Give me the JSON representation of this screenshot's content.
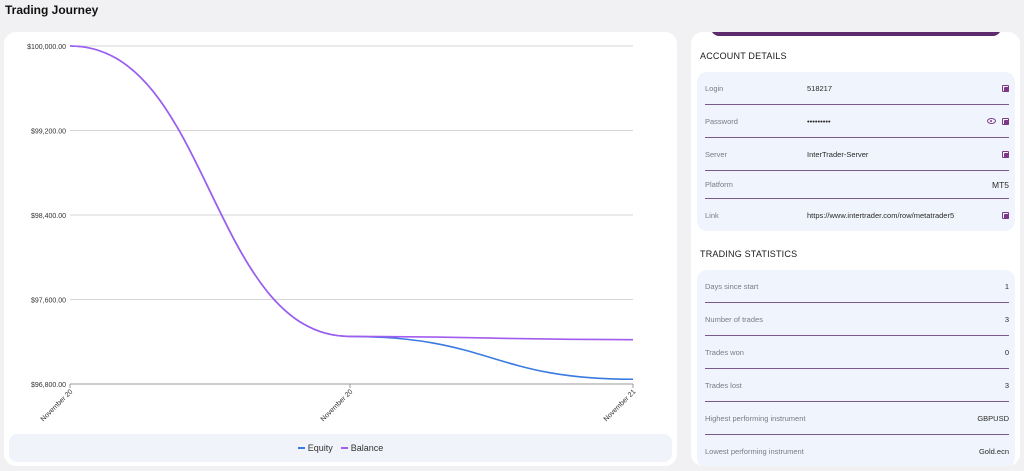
{
  "page": {
    "title": "Trading Journey"
  },
  "chart_data": {
    "type": "line",
    "x": [
      "November 20",
      "November 20",
      "November 21"
    ],
    "y_ticks": [
      "$100,000.00",
      "$99,200.00",
      "$98,400.00",
      "$97,600.00",
      "$96,800.00"
    ],
    "ylim": [
      96800,
      100000
    ],
    "series": [
      {
        "name": "Equity",
        "color": "#3a7be0",
        "values": [
          100000,
          97250,
          96845
        ]
      },
      {
        "name": "Balance",
        "color": "#a35cf0",
        "values": [
          100000,
          97250,
          97220
        ]
      }
    ],
    "legend_position": "bottom",
    "grid": true
  },
  "account": {
    "title": "ACCOUNT DETAILS",
    "login_label": "Login",
    "login_value": "518217",
    "password_label": "Password",
    "password_value": "•••••••••",
    "server_label": "Server",
    "server_value": "InterTrader-Server",
    "platform_label": "Platform",
    "platform_value": "MT5",
    "link_label": "Link",
    "link_value": "https://www.intertrader.com/row/metatrader5"
  },
  "stats": {
    "title": "TRADING STATISTICS",
    "rows": [
      {
        "label": "Days since start",
        "value": "1"
      },
      {
        "label": "Number of trades",
        "value": "3"
      },
      {
        "label": "Trades won",
        "value": "0"
      },
      {
        "label": "Trades lost",
        "value": "3"
      },
      {
        "label": "Highest performing instrument",
        "value": "GBPUSD"
      },
      {
        "label": "Lowest performing instrument",
        "value": "Gold.ecn"
      }
    ]
  },
  "icons": {
    "copy": "copy-icon",
    "eye": "eye-icon"
  },
  "colors": {
    "accent": "#7b3a83",
    "equity": "#3a7be0",
    "balance": "#a35cf0"
  }
}
